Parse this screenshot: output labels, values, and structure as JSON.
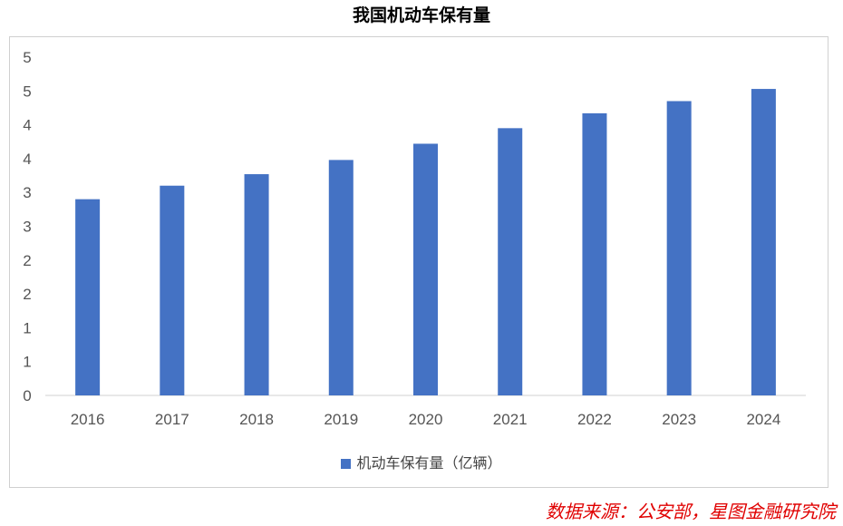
{
  "chart_data": {
    "type": "bar",
    "title": "我国机动车保有量",
    "categories": [
      "2016",
      "2017",
      "2018",
      "2019",
      "2020",
      "2021",
      "2022",
      "2023",
      "2024"
    ],
    "series": [
      {
        "name": "机动车保有量（亿辆）",
        "values": [
          2.9,
          3.1,
          3.27,
          3.48,
          3.72,
          3.95,
          4.17,
          4.35,
          4.53
        ]
      }
    ],
    "ylim": [
      0,
      5
    ],
    "yticks": [
      0,
      0.5,
      1,
      1.5,
      2,
      2.5,
      3,
      3.5,
      4,
      4.5,
      5
    ],
    "ytick_labels": [
      "0",
      "1",
      "1",
      "2",
      "2",
      "3",
      "3",
      "4",
      "4",
      "5",
      "5"
    ],
    "xlabel": "",
    "ylabel": "",
    "grid": false,
    "legend_position": "bottom",
    "color": "#4472c4"
  },
  "source": "数据来源：公安部，星图金融研究院"
}
